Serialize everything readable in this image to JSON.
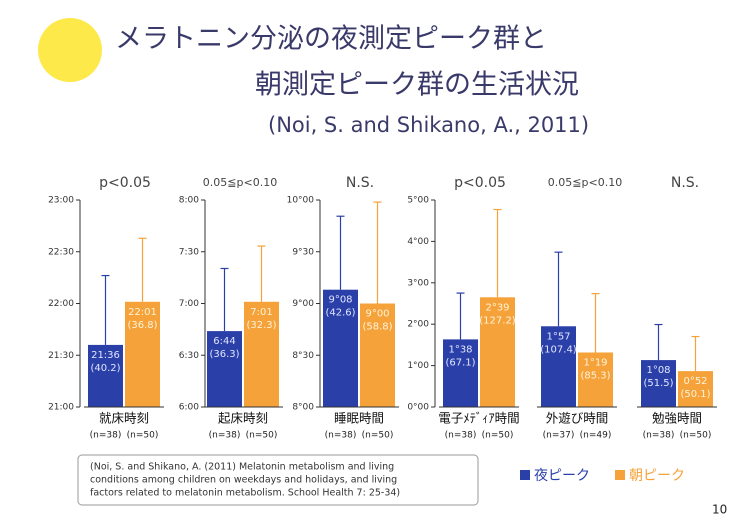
{
  "title_lines": [
    "メラトニン分泌の夜測定ピーク群と",
    "朝測定ピーク群の生活状況",
    "(Noi, S. and Shikano, A., 2011)"
  ],
  "legend": [
    {
      "name": "夜ピーク",
      "color": "#2b3fa8"
    },
    {
      "name": "朝ピーク",
      "color": "#f5a23a"
    }
  ],
  "citation": [
    "(Noi, S. and Shikano, A. (2011) Melatonin metabolism and living",
    "conditions among children on weekdays and holidays, and living",
    "factors related to melatonin metabolism. School Health 7: 25-34)"
  ],
  "page_number": "10",
  "chart_data": [
    {
      "type": "bar",
      "annotation": "p<0.05",
      "category": "就床時刻",
      "n_labels": [
        "(n=38)",
        "(n=50)"
      ],
      "values": [
        1296,
        1321
      ],
      "value_labels": [
        "21:36",
        "22:01"
      ],
      "errors": [
        40.2,
        36.8
      ],
      "error_labels": [
        "(40.2)",
        "(36.8)"
      ],
      "ylim": [
        1260,
        1380
      ],
      "yticks": [
        {
          "value": 1260,
          "label": "21:00"
        },
        {
          "value": 1290,
          "label": "21:30"
        },
        {
          "value": 1320,
          "label": "22:00"
        },
        {
          "value": 1350,
          "label": "22:30"
        },
        {
          "value": 1380,
          "label": "23:00"
        }
      ]
    },
    {
      "type": "bar",
      "annotation": "0.05≦p<0.10",
      "category": "起床時刻",
      "n_labels": [
        "(n=38)",
        "(n=50)"
      ],
      "values": [
        404,
        421
      ],
      "value_labels": [
        "6:44",
        "7:01"
      ],
      "errors": [
        36.3,
        32.3
      ],
      "error_labels": [
        "(36.3)",
        "(32.3)"
      ],
      "ylim": [
        360,
        480
      ],
      "yticks": [
        {
          "value": 360,
          "label": "6:00"
        },
        {
          "value": 390,
          "label": "6:30"
        },
        {
          "value": 420,
          "label": "7:00"
        },
        {
          "value": 450,
          "label": "7:30"
        },
        {
          "value": 480,
          "label": "8:00"
        }
      ]
    },
    {
      "type": "bar",
      "annotation": "N.S.",
      "category": "睡眠時間",
      "n_labels": [
        "(n=38)",
        "(n=50)"
      ],
      "values": [
        548,
        540
      ],
      "value_labels": [
        "9°08",
        "9°00"
      ],
      "errors": [
        42.6,
        58.8
      ],
      "error_labels": [
        "(42.6)",
        "(58.8)"
      ],
      "ylim": [
        480,
        600
      ],
      "yticks": [
        {
          "value": 480,
          "label": "8°00"
        },
        {
          "value": 510,
          "label": "8°30"
        },
        {
          "value": 540,
          "label": "9°00"
        },
        {
          "value": 570,
          "label": "9°30"
        },
        {
          "value": 600,
          "label": "10°00"
        }
      ]
    },
    {
      "type": "bar",
      "annotation": "p<0.05",
      "category": "電子ﾒﾃﾞｨｱ時間",
      "n_labels": [
        "(n=38)",
        "(n=50)"
      ],
      "values": [
        98,
        159
      ],
      "value_labels": [
        "1°38",
        "2°39"
      ],
      "errors": [
        67.1,
        127.2
      ],
      "error_labels": [
        "(67.1)",
        "(127.2)"
      ],
      "ylim": [
        0,
        300
      ],
      "yticks": [
        {
          "value": 0,
          "label": "0°00"
        },
        {
          "value": 60,
          "label": "1°00"
        },
        {
          "value": 120,
          "label": "2°00"
        },
        {
          "value": 180,
          "label": "3°00"
        },
        {
          "value": 240,
          "label": "4°00"
        },
        {
          "value": 300,
          "label": "5°00"
        }
      ]
    },
    {
      "type": "bar",
      "annotation": "0.05≦p<0.10",
      "category": "外遊び時間",
      "n_labels": [
        "(n=37)",
        "(n=49)"
      ],
      "values": [
        117,
        79
      ],
      "value_labels": [
        "1°57",
        "1°19"
      ],
      "errors": [
        107.4,
        85.3
      ],
      "error_labels": [
        "(107.4)",
        "(85.3)"
      ],
      "ylim": [
        0,
        300
      ]
    },
    {
      "type": "bar",
      "annotation": "N.S.",
      "category": "勉強時間",
      "n_labels": [
        "(n=38)",
        "(n=50)"
      ],
      "values": [
        68,
        52
      ],
      "value_labels": [
        "1°08",
        "0°52"
      ],
      "errors": [
        51.5,
        50.1
      ],
      "error_labels": [
        "(51.5)",
        "(50.1)"
      ],
      "ylim": [
        0,
        300
      ]
    }
  ]
}
